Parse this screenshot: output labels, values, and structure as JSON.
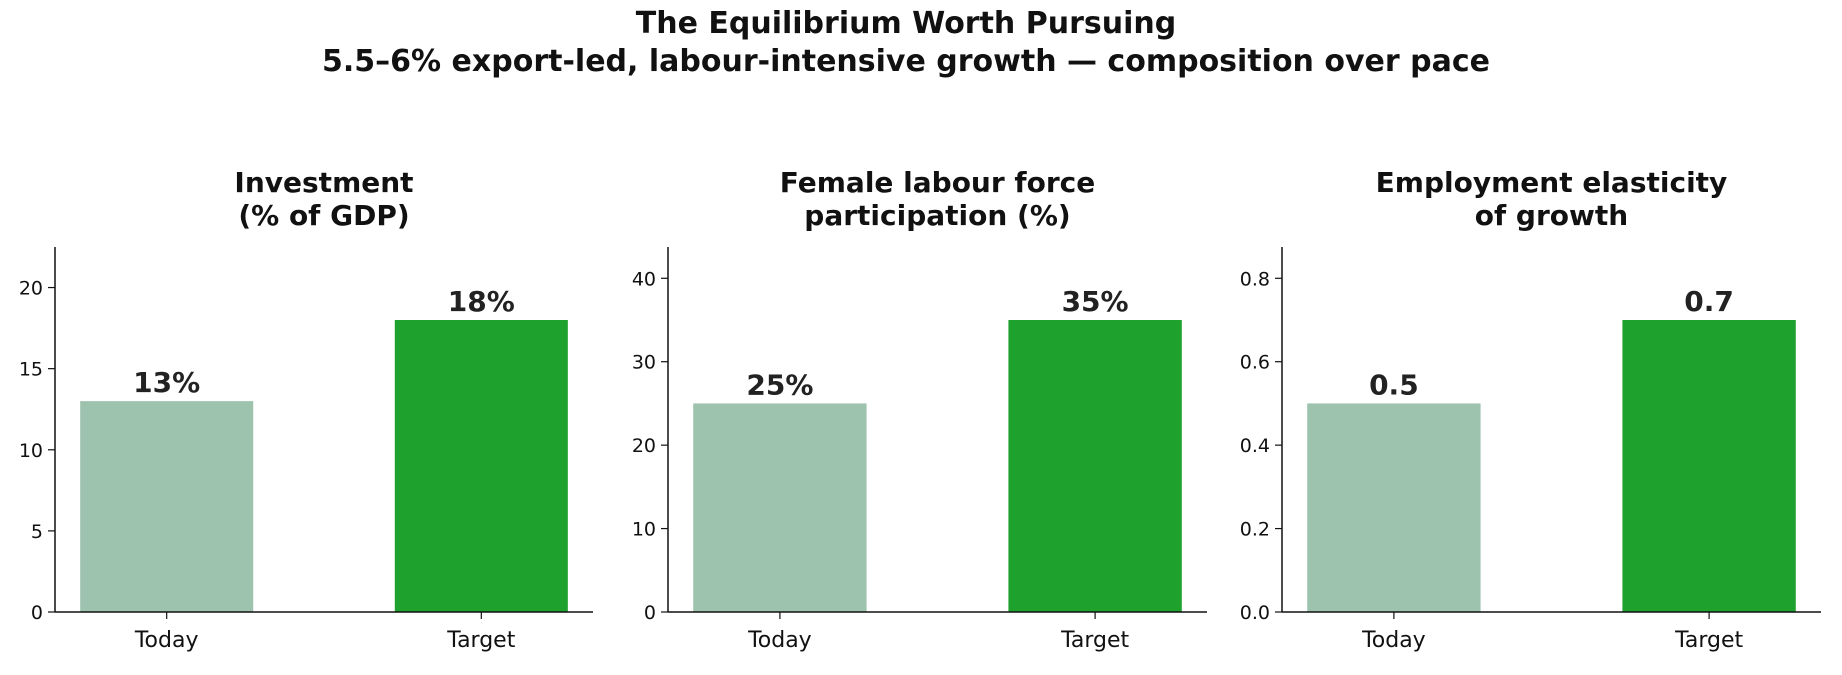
{
  "title": "The Equilibrium Worth Pursuing\n5.5–6% export-led, labour-intensive growth — composition over pace",
  "chart_data": [
    {
      "type": "bar",
      "title": "Investment\n(% of GDP)",
      "categories": [
        "Today",
        "Target"
      ],
      "values": [
        13,
        18
      ],
      "value_labels": [
        "13%",
        "18%"
      ],
      "colors": [
        "#9dc3ae",
        "#1fa12e"
      ],
      "ylim": [
        0,
        22.5
      ],
      "yticks": [
        0,
        5,
        10,
        15,
        20
      ]
    },
    {
      "type": "bar",
      "title": "Female labour force\nparticipation (%)",
      "categories": [
        "Today",
        "Target"
      ],
      "values": [
        25,
        35
      ],
      "value_labels": [
        "25%",
        "35%"
      ],
      "colors": [
        "#9dc3ae",
        "#1fa12e"
      ],
      "ylim": [
        0,
        43.75
      ],
      "yticks": [
        0,
        10,
        20,
        30,
        40
      ]
    },
    {
      "type": "bar",
      "title": "Employment elasticity\nof growth",
      "categories": [
        "Today",
        "Target"
      ],
      "values": [
        0.5,
        0.7
      ],
      "colors": [
        "#9dc3ae",
        "#1fa12e"
      ],
      "ylim": [
        0,
        0.875
      ],
      "yticks": [
        {
          "value": 0,
          "label": "0.0"
        },
        0.2,
        0.4,
        0.6,
        0.8
      ]
    }
  ]
}
